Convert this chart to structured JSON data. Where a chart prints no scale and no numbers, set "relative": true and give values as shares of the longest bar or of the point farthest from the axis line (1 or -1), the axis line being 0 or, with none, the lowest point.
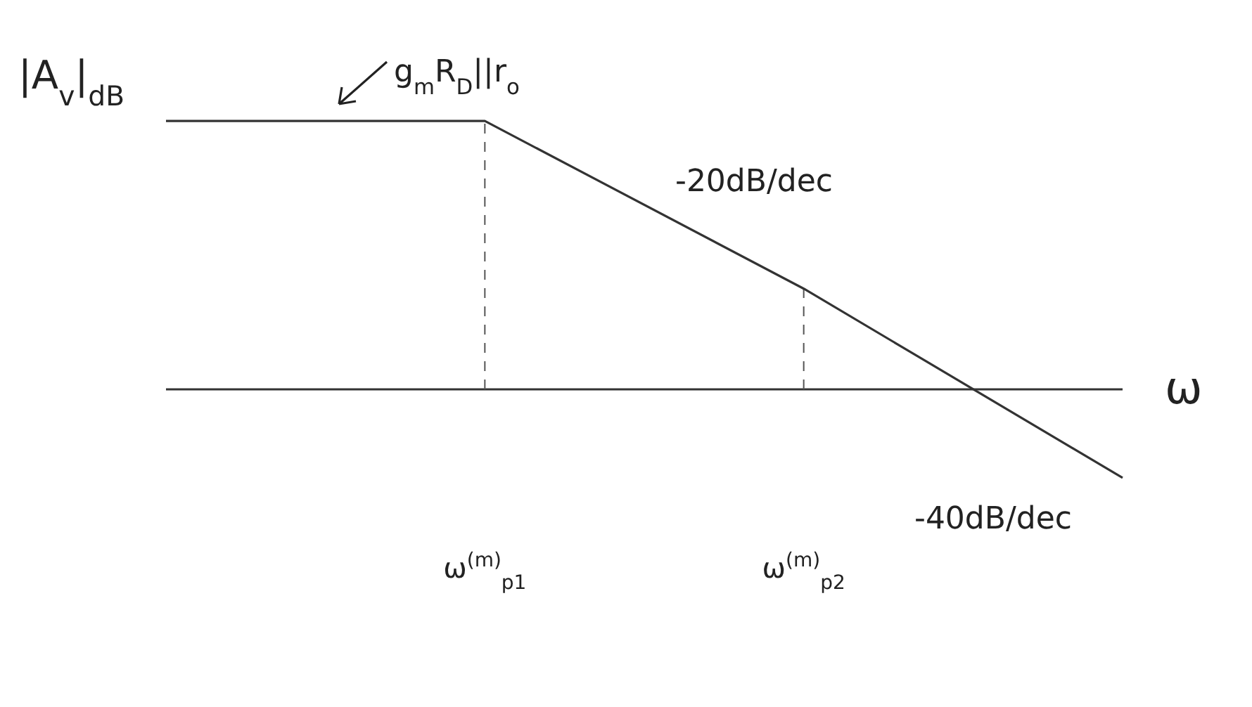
{
  "chart_data": {
    "type": "line",
    "relative": true,
    "xlabel": "ω",
    "ylabel": "|A$_{v}$|$_{dB}$",
    "categories": [
      null,
      "ω$^{(m)}$$_{p1}$",
      "ω$^{(m)}$$_{p2}$",
      null
    ],
    "series": [
      {
        "color": "#333333",
        "values": [
          1,
          1,
          0.375,
          -0.33
        ]
      }
    ],
    "ref_lines": [
      {
        "axis": "x",
        "value": "ω$^{(m)}$$_{p1}$",
        "line_style": "dashed",
        "color": "#555555"
      },
      {
        "axis": "x",
        "value": "ω$^{(m)}$$_{p2}$",
        "line_style": "dashed",
        "color": "#555555"
      }
    ],
    "annotations": [
      "g$_{m}$R$_{D}$||r$_{o}$",
      "-20dB/dec",
      "-40dB/dec"
    ],
    "marker": "none",
    "line_style": "solid"
  }
}
